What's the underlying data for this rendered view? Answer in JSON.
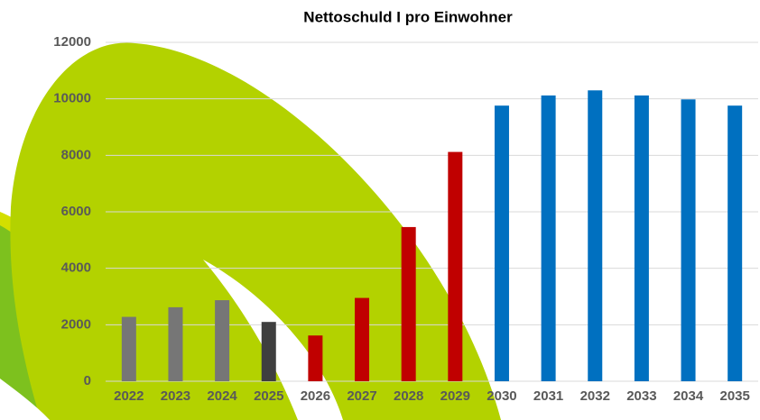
{
  "chart_data": {
    "type": "bar",
    "title": "Nettoschuld I pro Einwohner",
    "categories": [
      "2022",
      "2023",
      "2024",
      "2025",
      "2026",
      "2027",
      "2028",
      "2029",
      "2030",
      "2031",
      "2032",
      "2033",
      "2034",
      "2035"
    ],
    "values": [
      2280,
      2620,
      2870,
      2100,
      1620,
      2950,
      5460,
      8120,
      9760,
      10120,
      10300,
      10120,
      9980,
      9760
    ],
    "colors": [
      "#767676",
      "#767676",
      "#767676",
      "#3f3f3f",
      "#c00000",
      "#c00000",
      "#c00000",
      "#c00000",
      "#0070c0",
      "#0070c0",
      "#0070c0",
      "#0070c0",
      "#0070c0",
      "#0070c0"
    ],
    "ylim": [
      0,
      12000
    ],
    "yticks": [
      0,
      2000,
      4000,
      6000,
      8000,
      10000,
      12000
    ],
    "grid": true
  }
}
